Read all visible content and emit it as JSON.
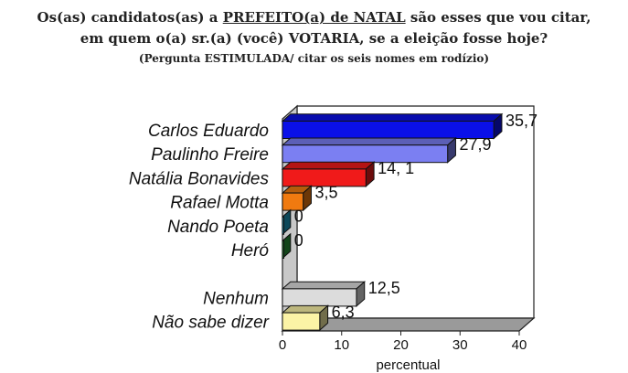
{
  "title": {
    "line1_pre": "Os(as) candidatos(as) a ",
    "line1_underlined": "PREFEITO(a) de NATAL",
    "line1_post": " são esses que vou citar,",
    "line2": "em quem o(a) sr.(a) (você) VOTARIA, se a eleição fosse hoje?",
    "line3": "(Pergunta ESTIMULADA/ citar os seis nomes em rodízio)"
  },
  "chart_data": {
    "type": "bar",
    "orientation": "horizontal",
    "three_d": true,
    "categories": [
      "Carlos Eduardo",
      "Paulinho Freire",
      "Natália Bonavides",
      "Rafael Motta",
      "Nando Poeta",
      "Heró",
      "",
      "Nenhum",
      "Não sabe dizer"
    ],
    "values": [
      35.7,
      27.9,
      14.1,
      3.5,
      0,
      0,
      null,
      12.5,
      6.3
    ],
    "value_labels": [
      "35,7",
      "27,9",
      "14, 1",
      "3,5",
      "0",
      "0",
      "",
      "12,5",
      "6,3"
    ],
    "colors": [
      "#0a10e8",
      "#7b7ff2",
      "#f01a1a",
      "#f07a10",
      "#1aa0c8",
      "#2a9a3a",
      "",
      "#dcdcdc",
      "#fbf3a6"
    ],
    "xlim": [
      0,
      40
    ],
    "xticks": [
      "0",
      "10",
      "20",
      "30",
      "40"
    ],
    "xlabel": "percentual",
    "grid": false,
    "legend": "none"
  }
}
